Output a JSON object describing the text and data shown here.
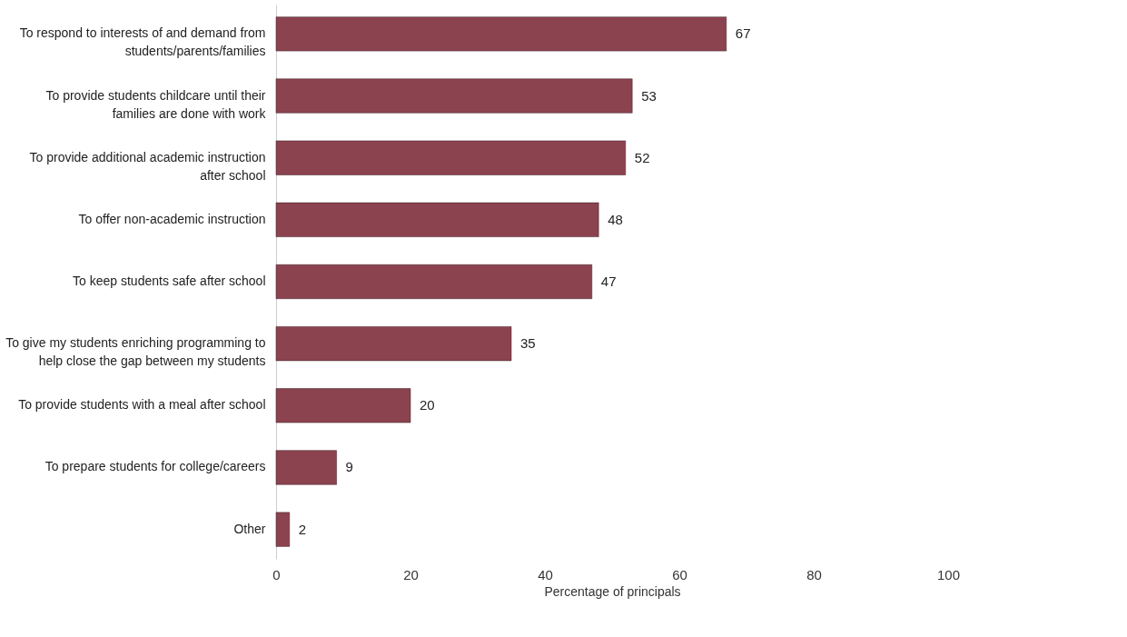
{
  "chart_data": {
    "type": "bar",
    "orientation": "horizontal",
    "categories": [
      "To respond to interests of and demand from students/parents/families",
      "To provide students childcare until their families are done with work",
      "To provide additional academic instruction after school",
      "To offer non-academic instruction",
      "To keep students safe after school",
      "To give my students enriching programming to help close the gap between my students",
      "To provide students with a meal after school",
      "To prepare students for college/careers",
      "Other"
    ],
    "values": [
      67,
      53,
      52,
      48,
      47,
      35,
      20,
      9,
      2
    ],
    "color": "#8b4350",
    "xlabel": "Percentage of principals",
    "xlim": [
      0,
      100
    ],
    "xticks": [
      0,
      20,
      40,
      60,
      80,
      100
    ],
    "data_labels": true,
    "grid": false
  }
}
